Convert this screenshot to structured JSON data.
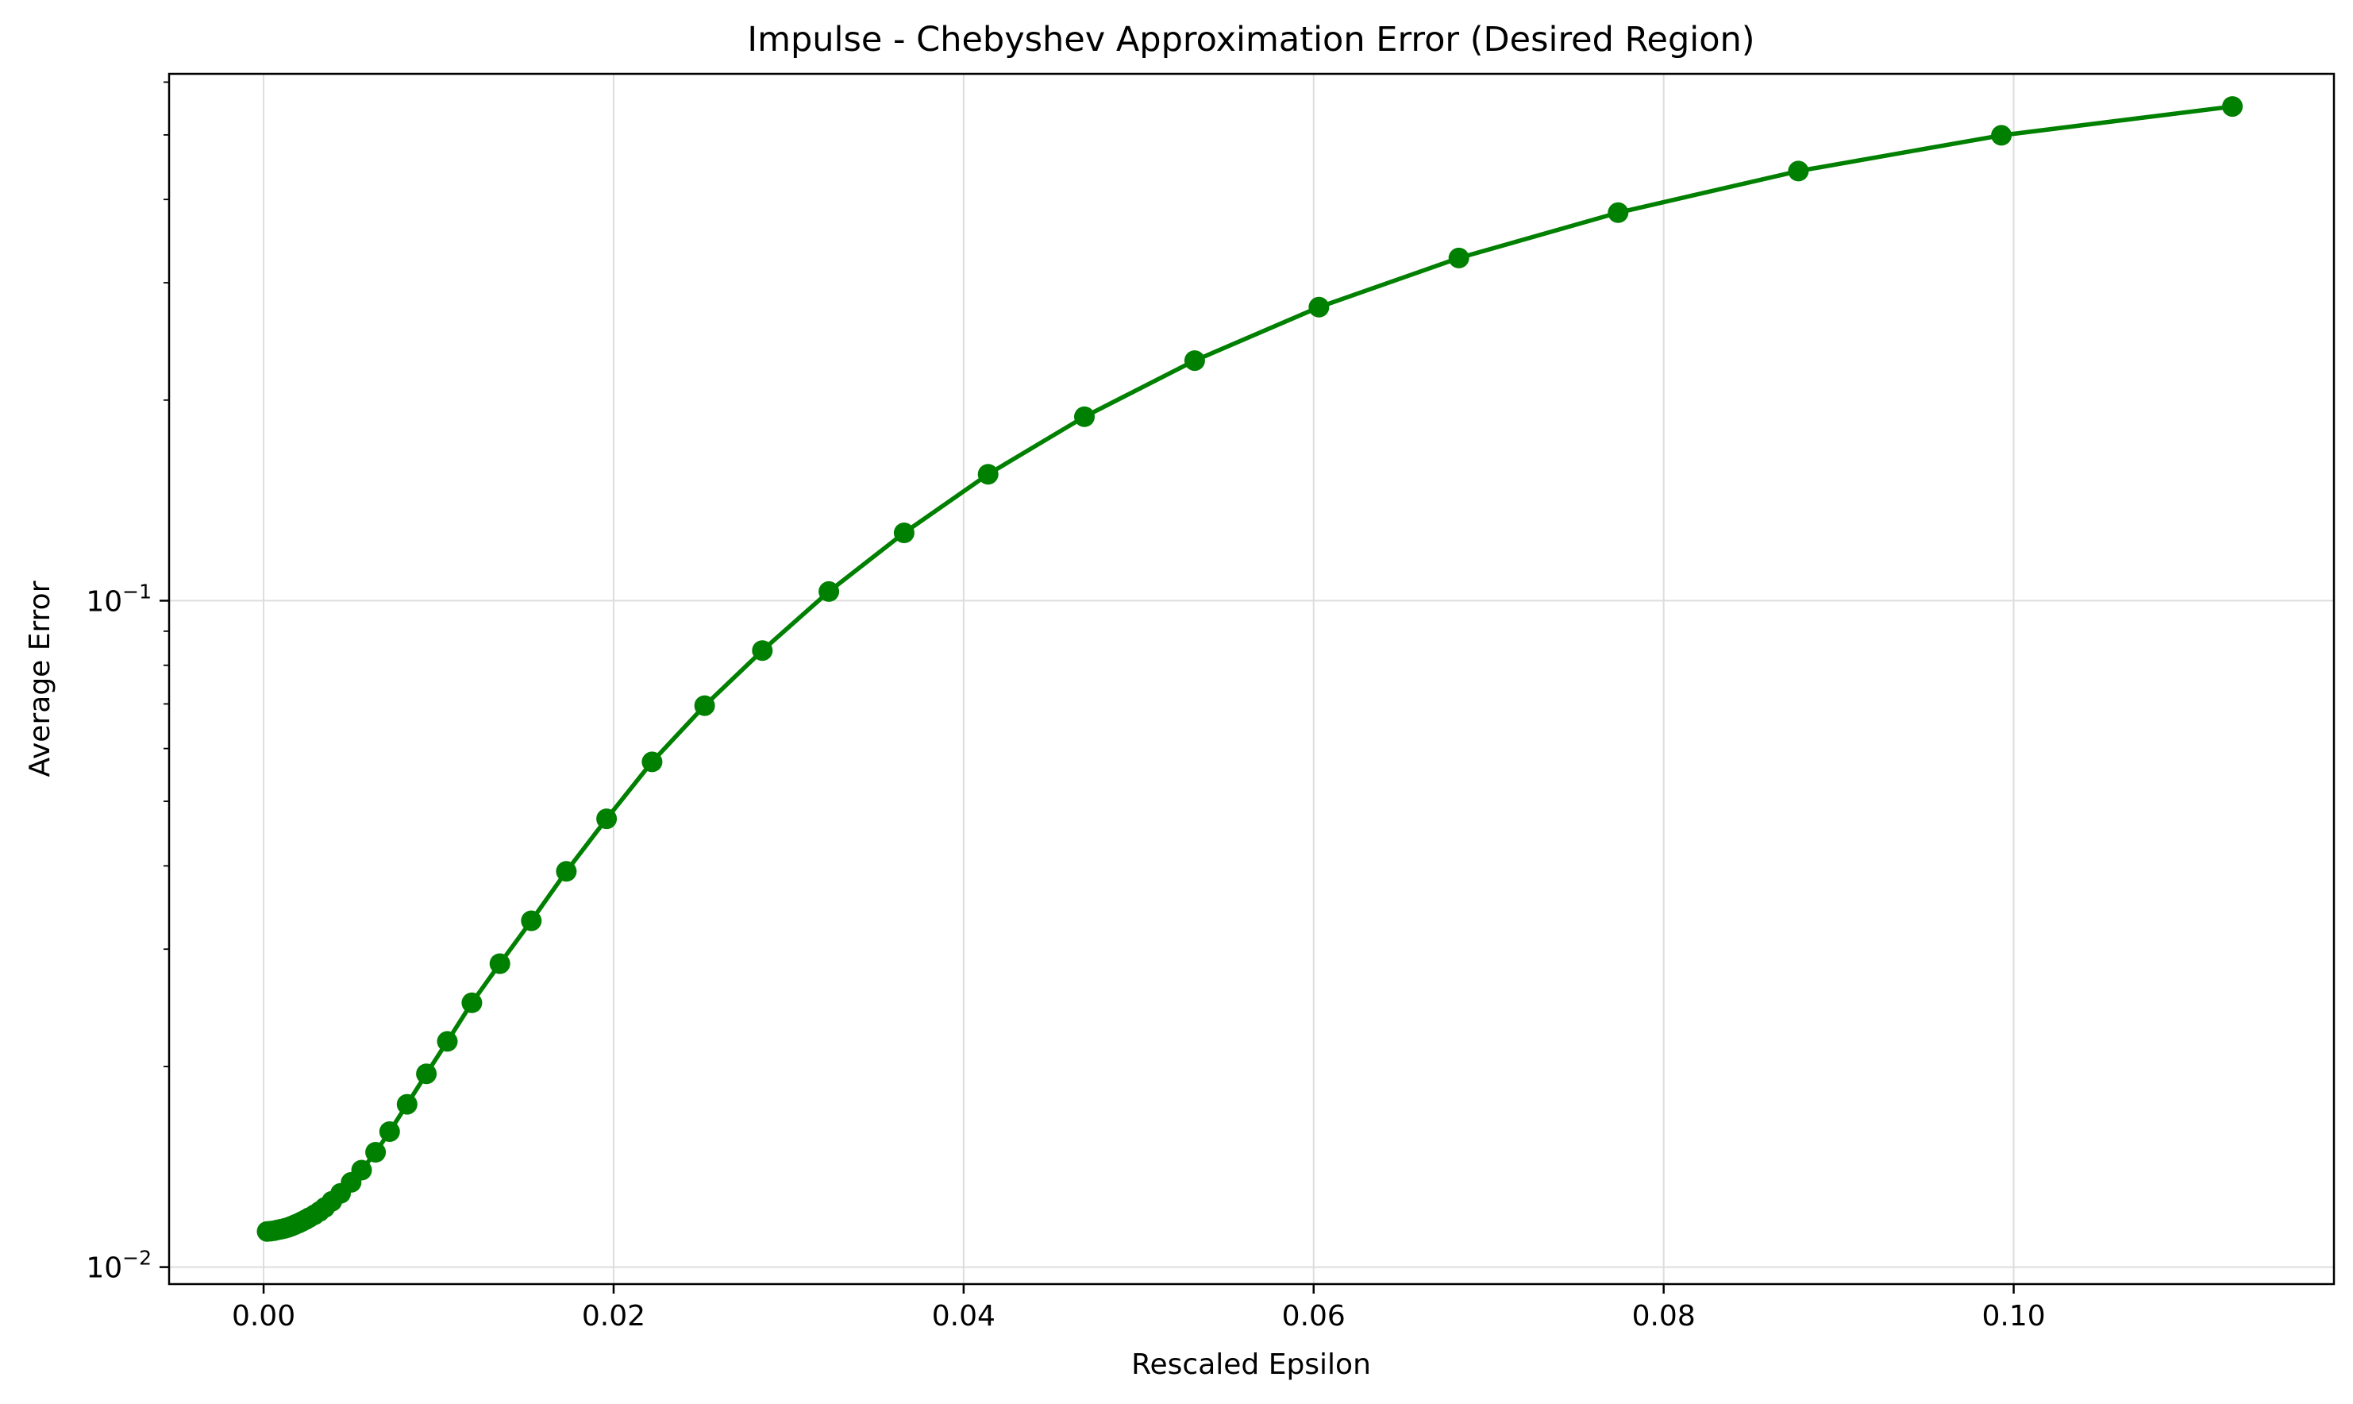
{
  "chart_data": {
    "type": "line",
    "title": "Impulse - Chebyshev Approximation Error (Desired Region)",
    "xlabel": "Rescaled Epsilon",
    "ylabel": "Average Error",
    "yscale": "log",
    "xlim": [
      -0.0054,
      0.1183
    ],
    "ylim": [
      0.00943,
      0.6174
    ],
    "grid": true,
    "legend": "none",
    "x_ticks": [
      {
        "value": 0.0,
        "label": "0.00"
      },
      {
        "value": 0.02,
        "label": "0.02"
      },
      {
        "value": 0.04,
        "label": "0.04"
      },
      {
        "value": 0.06,
        "label": "0.06"
      },
      {
        "value": 0.08,
        "label": "0.08"
      },
      {
        "value": 0.1,
        "label": "0.10"
      }
    ],
    "y_ticks": [
      {
        "value": 0.01,
        "base": "10",
        "exponent": "−2"
      },
      {
        "value": 0.1,
        "base": "10",
        "exponent": "−1"
      }
    ],
    "series": [
      {
        "color": "#008000",
        "marker": "circle",
        "x": [
          0.0002,
          0.0004,
          0.0006,
          0.0008,
          0.001,
          0.0012,
          0.0014,
          0.0016,
          0.0018,
          0.002,
          0.0022,
          0.0024,
          0.0026,
          0.0029,
          0.0032,
          0.0035,
          0.0039,
          0.0044,
          0.005,
          0.0056,
          0.0064,
          0.0072,
          0.0082,
          0.0093,
          0.0105,
          0.0119,
          0.0135,
          0.0153,
          0.0173,
          0.0196,
          0.0222,
          0.0252,
          0.0285,
          0.0323,
          0.0366,
          0.0414,
          0.0469,
          0.0532,
          0.0603,
          0.0683,
          0.0774,
          0.0877,
          0.0993,
          0.1125
        ],
        "y": [
          0.01131,
          0.01132,
          0.01134,
          0.01137,
          0.0114,
          0.01143,
          0.01147,
          0.01152,
          0.01158,
          0.01164,
          0.01171,
          0.01178,
          0.01186,
          0.01198,
          0.01212,
          0.01229,
          0.01255,
          0.0129,
          0.0134,
          0.01398,
          0.01487,
          0.01597,
          0.01755,
          0.0195,
          0.02181,
          0.02492,
          0.02853,
          0.03309,
          0.03925,
          0.04707,
          0.05729,
          0.06958,
          0.08418,
          0.1032,
          0.1264,
          0.1548,
          0.1888,
          0.2292,
          0.2757,
          0.3268,
          0.3822,
          0.4413,
          0.4993,
          0.5516
        ]
      }
    ]
  }
}
